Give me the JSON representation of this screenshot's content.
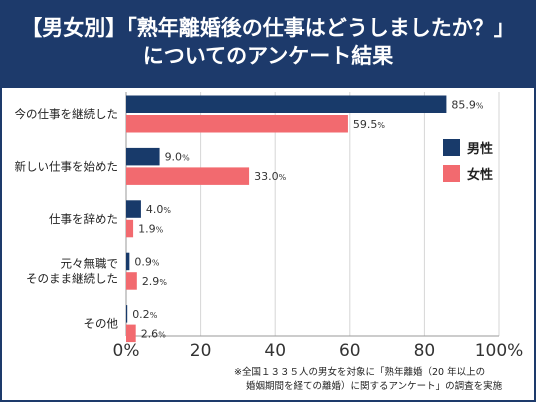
{
  "title": {
    "line1": "【男女別】「熟年離婚後の仕事はどうしましたか？」",
    "line2": "についてのアンケート結果"
  },
  "colors": {
    "male": "#183a6a",
    "female": "#f26a6f",
    "header": "#1d3a6b"
  },
  "chart_data": {
    "type": "bar",
    "orientation": "horizontal",
    "categories": [
      [
        "今の仕事を継続した"
      ],
      [
        "新しい仕事を始めた"
      ],
      [
        "仕事を辞めた"
      ],
      [
        "元々無職で",
        "そのまま継続した"
      ],
      [
        "その他"
      ]
    ],
    "series": [
      {
        "name": "男性",
        "color": "#183a6a",
        "values": [
          85.9,
          9.0,
          4.0,
          0.9,
          0.2
        ],
        "labels": [
          "85.9%",
          "9.0%",
          "4.0%",
          "0.9%",
          "0.2%"
        ]
      },
      {
        "name": "女性",
        "color": "#f26a6f",
        "values": [
          59.5,
          33.0,
          1.9,
          2.9,
          2.6
        ],
        "labels": [
          "59.5%",
          "33.0%",
          "1.9%",
          "2.9%",
          "2.6%"
        ]
      }
    ],
    "xlim": [
      0,
      100
    ],
    "xticks": [
      0,
      20,
      40,
      60,
      80,
      100
    ],
    "xtick_labels": [
      "0%",
      "20",
      "40",
      "60",
      "80",
      "100%"
    ],
    "grid": true,
    "legend_position": "right"
  },
  "footnote": {
    "line1": "※全国１３３５人の男女を対象に「熟年離婚（20 年以上の",
    "line2": "婚姻期間を経ての離婚）に関するアンケート」の調査を実施"
  }
}
